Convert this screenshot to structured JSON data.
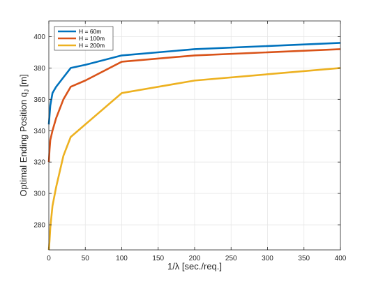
{
  "chart_data": {
    "type": "line",
    "xlabel": "1/λ [sec./req.]",
    "ylabel_main": "Optimal Ending Position q",
    "ylabel_sub": "J",
    "ylabel_unit": " [m]",
    "xlim": [
      0,
      400
    ],
    "ylim": [
      264,
      410
    ],
    "x_ticks": [
      0,
      50,
      100,
      150,
      200,
      250,
      300,
      350,
      400
    ],
    "y_ticks": [
      280,
      300,
      320,
      340,
      360,
      380,
      400
    ],
    "grid": true,
    "legend_position": "top-left",
    "series": [
      {
        "name": "H = 60m",
        "color": "#0072BD",
        "x": [
          0,
          1,
          2,
          5,
          10,
          20,
          30,
          50,
          100,
          200,
          400
        ],
        "y": [
          344,
          350,
          356,
          364,
          368,
          374,
          380,
          382,
          388,
          392,
          396
        ]
      },
      {
        "name": "H = 100m",
        "color": "#D95319",
        "x": [
          0,
          1,
          2,
          5,
          10,
          20,
          30,
          50,
          100,
          200,
          400
        ],
        "y": [
          320,
          328,
          334,
          340,
          348,
          360,
          368,
          372,
          384,
          388,
          392
        ]
      },
      {
        "name": "H = 200m",
        "color": "#EDB120",
        "x": [
          0,
          1,
          2,
          5,
          10,
          20,
          30,
          50,
          100,
          200,
          400
        ],
        "y": [
          264,
          270,
          278,
          292,
          304,
          324,
          336,
          344,
          364,
          372,
          380
        ]
      }
    ]
  }
}
